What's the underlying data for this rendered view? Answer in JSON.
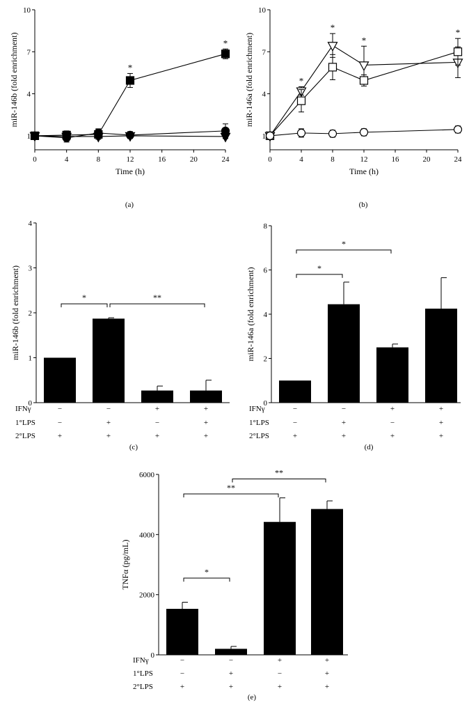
{
  "chart_data": [
    {
      "panel": "(a)",
      "type": "line",
      "xlabel": "Time (h)",
      "ylabel": "miR-146b (fold enrichment)",
      "xlim": [
        0,
        24
      ],
      "ylim": [
        0,
        10
      ],
      "xticks": [
        0,
        4,
        8,
        12,
        16,
        20,
        24
      ],
      "yticks": [
        1,
        4,
        7,
        10
      ],
      "series": [
        {
          "marker": "square-filled",
          "x": [
            0,
            4,
            8,
            12,
            24
          ],
          "values": [
            1.0,
            1.05,
            1.1,
            4.95,
            6.85
          ],
          "errors": [
            0.1,
            0.3,
            0.35,
            0.5,
            0.35
          ]
        },
        {
          "marker": "circle-filled",
          "x": [
            0,
            4,
            8,
            12,
            24
          ],
          "values": [
            1.0,
            0.85,
            1.2,
            1.05,
            1.35
          ],
          "errors": [
            0.1,
            0.3,
            0.3,
            0.25,
            0.5
          ]
        },
        {
          "marker": "triangle-down-filled",
          "x": [
            0,
            4,
            8,
            12,
            24
          ],
          "values": [
            1.0,
            0.95,
            0.95,
            1.0,
            0.95
          ],
          "errors": [
            0.05,
            0.1,
            0.2,
            0.15,
            0.15
          ]
        }
      ],
      "annotations": [
        {
          "x": 12,
          "text": "*"
        },
        {
          "x": 24,
          "text": "*"
        }
      ]
    },
    {
      "panel": "(b)",
      "type": "line",
      "xlabel": "Time (h)",
      "ylabel": "miR-146a (fold enrichment)",
      "xlim": [
        0,
        24
      ],
      "ylim": [
        0,
        10
      ],
      "xticks": [
        0,
        4,
        8,
        12,
        16,
        20,
        24
      ],
      "yticks": [
        1,
        4,
        7,
        10
      ],
      "series": [
        {
          "marker": "triangle-down-open",
          "x": [
            0,
            4,
            8,
            12,
            24
          ],
          "values": [
            1.0,
            4.2,
            7.45,
            6.05,
            6.25
          ],
          "errors": [
            0.05,
            0.3,
            0.85,
            1.35,
            1.1
          ]
        },
        {
          "marker": "square-open",
          "x": [
            0,
            4,
            8,
            12,
            24
          ],
          "values": [
            1.0,
            3.5,
            5.9,
            4.95,
            7.0
          ],
          "errors": [
            0.05,
            0.8,
            0.9,
            0.4,
            0.95
          ]
        },
        {
          "marker": "circle-open",
          "x": [
            0,
            4,
            8,
            12,
            24
          ],
          "values": [
            1.0,
            1.2,
            1.15,
            1.25,
            1.45
          ],
          "errors": [
            0.05,
            0.3,
            0.25,
            0.25,
            0.25
          ]
        }
      ],
      "annotations": [
        {
          "x": 4,
          "text": "*"
        },
        {
          "x": 8,
          "text": "*"
        },
        {
          "x": 12,
          "text": "*"
        },
        {
          "x": 24,
          "text": "*"
        }
      ]
    },
    {
      "panel": "(c)",
      "type": "bar",
      "ylabel": "miR-146b (fold enrichment)",
      "ylim": [
        0,
        4
      ],
      "yticks": [
        0,
        1,
        2,
        3,
        4
      ],
      "values": [
        1.0,
        1.87,
        0.27,
        0.27
      ],
      "errors": [
        0.0,
        0.02,
        0.1,
        0.23
      ],
      "conditions": {
        "labels": [
          "IFNγ",
          "1°LPS",
          "2°LPS"
        ],
        "rows": [
          [
            "−",
            "−",
            "+",
            "+"
          ],
          [
            "−",
            "+",
            "−",
            "+"
          ],
          [
            "+",
            "+",
            "+",
            "+"
          ]
        ]
      },
      "brackets": [
        {
          "from": 0,
          "to": 1,
          "y": 2.2,
          "text": "*"
        },
        {
          "from": 1,
          "to": 3,
          "y": 2.2,
          "text": "**"
        }
      ]
    },
    {
      "panel": "(d)",
      "type": "bar",
      "ylabel": "miR-146a (fold enrichment)",
      "ylim": [
        0,
        8
      ],
      "yticks": [
        0,
        2,
        4,
        6,
        8
      ],
      "values": [
        1.0,
        4.45,
        2.5,
        4.25
      ],
      "errors": [
        0.0,
        1.0,
        0.15,
        1.4
      ],
      "conditions": {
        "labels": [
          "IFNγ",
          "1°LPS",
          "2°LPS"
        ],
        "rows": [
          [
            "−",
            "−",
            "+",
            "+"
          ],
          [
            "−",
            "+",
            "−",
            "+"
          ],
          [
            "+",
            "+",
            "+",
            "+"
          ]
        ]
      },
      "brackets": [
        {
          "from": 0,
          "to": 1,
          "y": 5.8,
          "text": "*"
        },
        {
          "from": 0,
          "to": 2,
          "y": 6.9,
          "text": "*"
        }
      ]
    },
    {
      "panel": "(e)",
      "type": "bar",
      "ylabel": "TNFα (pg/mL)",
      "ylim": [
        0,
        6000
      ],
      "yticks": [
        0,
        2000,
        4000,
        6000
      ],
      "values": [
        1530,
        200,
        4420,
        4850
      ],
      "errors": [
        220,
        80,
        800,
        270
      ],
      "conditions": {
        "labels": [
          "IFNγ",
          "1°LPS",
          "2°LPS"
        ],
        "rows": [
          [
            "−",
            "−",
            "+",
            "+"
          ],
          [
            "−",
            "+",
            "−",
            "+"
          ],
          [
            "+",
            "+",
            "+",
            "+"
          ]
        ]
      },
      "brackets": [
        {
          "from": 0,
          "to": 1,
          "y": 2550,
          "text": "*"
        },
        {
          "from": 0,
          "to": 2,
          "y": 5350,
          "text": "**"
        },
        {
          "from": 1,
          "to": 3,
          "y": 5850,
          "text": "**"
        }
      ]
    }
  ]
}
